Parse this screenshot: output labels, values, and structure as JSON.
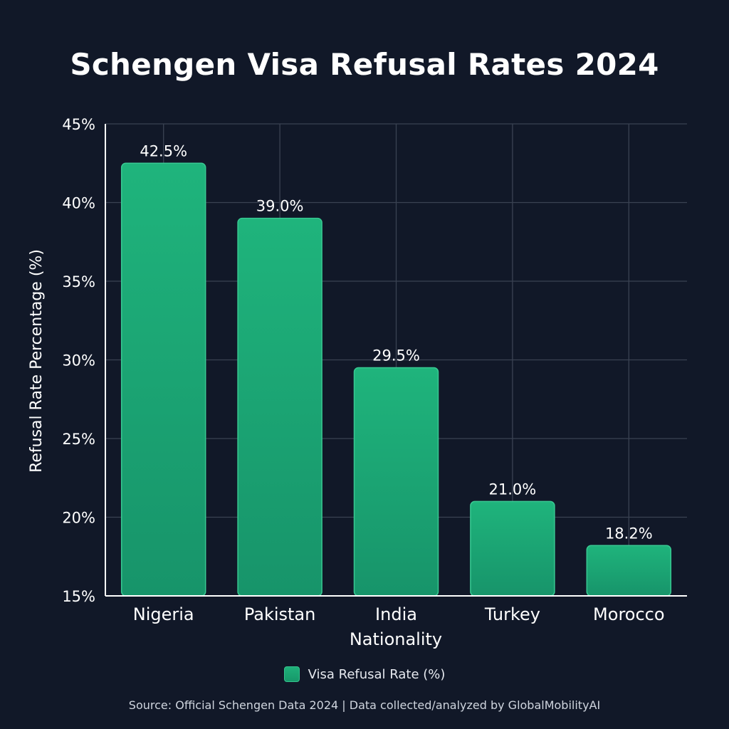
{
  "chart_data": {
    "type": "bar",
    "title": "Schengen Visa Refusal Rates 2024",
    "xlabel": "Nationality",
    "ylabel": "Refusal Rate Percentage (%)",
    "categories": [
      "Nigeria",
      "Pakistan",
      "India",
      "Turkey",
      "Morocco"
    ],
    "series": [
      {
        "name": "Visa Refusal Rate (%)",
        "values": [
          42.5,
          39.0,
          29.5,
          21.0,
          18.2
        ],
        "value_labels": [
          "42.5%",
          "39.0%",
          "29.5%",
          "21.0%",
          "18.2%"
        ]
      }
    ],
    "ylim": [
      15,
      45
    ],
    "yticks": [
      15,
      20,
      25,
      30,
      35,
      40,
      45
    ],
    "ytick_labels": [
      "15%",
      "20%",
      "25%",
      "30%",
      "35%",
      "40%",
      "45%"
    ],
    "grid": true,
    "legend": "bottom-center",
    "colors": {
      "bar": "#1aa872",
      "bar_top": "#1fb47c",
      "bar_bottom": "#17946a",
      "bar_border": "#38c992",
      "grid": "#3a4252",
      "background": "#111828",
      "text": "#ffffff"
    }
  },
  "footer": {
    "source": "Source: Official Schengen Data 2024 | Data collected/analyzed by GlobalMobilityAI"
  }
}
